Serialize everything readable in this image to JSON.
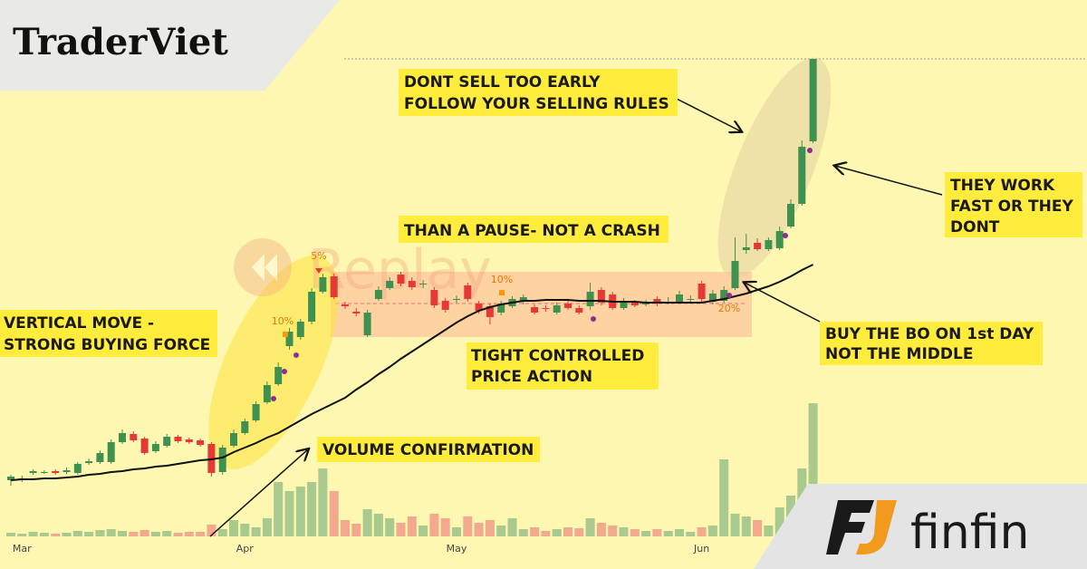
{
  "header": {
    "brand": "TraderViet"
  },
  "logo": {
    "name": "finfin"
  },
  "watermark": "Replay",
  "annotations": [
    [
      "DONT SELL TOO EARLY",
      "FOLLOW YOUR SELLING RULES"
    ],
    [
      "THAN A PAUSE- NOT A CRASH"
    ],
    [
      "VERTICAL MOVE -",
      "STRONG BUYING FORCE"
    ],
    [
      "TIGHT CONTROLLED",
      "PRICE ACTION"
    ],
    [
      "VOLUME CONFIRMATION"
    ],
    [
      "THEY WORK",
      "FAST OR THEY",
      "DONT"
    ],
    [
      "BUY THE BO ON 1st DAY",
      "NOT THE MIDDLE"
    ]
  ],
  "signal_labels": [
    "5%",
    "10%",
    "10%",
    "20%"
  ],
  "chart_data": {
    "type": "candlestick",
    "categories": [
      null,
      "Mar",
      null,
      null,
      null,
      null,
      null,
      null,
      null,
      null,
      null,
      null,
      null,
      null,
      null,
      null,
      null,
      null,
      null,
      null,
      null,
      "Apr",
      null,
      null,
      null,
      null,
      null,
      null,
      null,
      null,
      null,
      null,
      null,
      null,
      null,
      null,
      null,
      null,
      null,
      null,
      "May",
      null,
      null,
      null,
      null,
      null,
      null,
      null,
      null,
      null,
      null,
      null,
      null,
      null,
      null,
      null,
      null,
      null,
      null,
      null,
      null,
      null,
      "Jun",
      null,
      null,
      null,
      null,
      null,
      null,
      null,
      null,
      null,
      null
    ],
    "open": [
      7.0,
      7.2,
      7.8,
      7.9,
      8.0,
      7.9,
      7.8,
      8.9,
      9.0,
      9.0,
      11.2,
      12.1,
      11.6,
      10.2,
      10.8,
      11.8,
      11.5,
      11.4,
      11.0,
      7.9,
      10.8,
      12.2,
      13.6,
      15.6,
      17.6,
      21.8,
      22.8,
      24.5,
      27.8,
      29.5,
      26.4,
      25.6,
      23.0,
      27.0,
      28.2,
      29.7,
      29.0,
      28.7,
      28.0,
      26.8,
      27.0,
      28.5,
      26.5,
      26.2,
      25.5,
      26.2,
      26.7,
      26.1,
      26.0,
      25.5,
      26.5,
      26.0,
      26.2,
      28.0,
      27.5,
      26.0,
      26.6,
      26.5,
      27.0,
      26.7,
      26.7,
      27.0,
      28.7,
      26.7,
      26.8,
      28.2,
      32.4,
      33.2,
      32.5,
      32.6,
      35.0,
      37.5,
      44.4
    ],
    "close": [
      7.4,
      7.2,
      8.0,
      7.9,
      7.8,
      8.1,
      8.8,
      9.1,
      10.0,
      11.2,
      12.2,
      11.4,
      10.0,
      11.0,
      11.8,
      11.3,
      11.2,
      10.9,
      7.8,
      10.6,
      12.2,
      13.5,
      15.4,
      17.5,
      19.5,
      23.4,
      24.5,
      27.8,
      29.4,
      27.2,
      26.2,
      25.4,
      25.5,
      28.0,
      29.0,
      28.7,
      28.3,
      28.7,
      26.3,
      25.8,
      27.0,
      27.0,
      25.7,
      25.0,
      26.5,
      27.0,
      27.2,
      25.5,
      25.9,
      26.3,
      26.0,
      25.5,
      27.8,
      26.6,
      26.0,
      26.8,
      26.3,
      26.5,
      26.5,
      26.7,
      27.5,
      27.0,
      27.0,
      27.6,
      28.0,
      31.2,
      32.7,
      32.5,
      33.5,
      34.5,
      37.5,
      43.8,
      53.5
    ],
    "high": [
      7.6,
      7.5,
      8.2,
      8.1,
      8.2,
      8.4,
      9.0,
      9.4,
      10.3,
      11.5,
      12.6,
      12.4,
      11.8,
      11.3,
      12.1,
      12.0,
      11.7,
      11.6,
      11.2,
      10.9,
      12.6,
      13.8,
      15.7,
      17.9,
      20.0,
      23.8,
      24.8,
      28.2,
      29.8,
      29.8,
      26.7,
      26.0,
      25.8,
      28.4,
      29.4,
      30.0,
      29.4,
      29.1,
      28.3,
      27.1,
      27.4,
      28.8,
      26.8,
      26.5,
      26.8,
      27.3,
      27.5,
      26.4,
      26.3,
      26.6,
      26.8,
      26.3,
      28.8,
      28.3,
      27.8,
      27.1,
      26.9,
      26.9,
      27.3,
      27.2,
      27.9,
      27.4,
      29.0,
      28.0,
      28.4,
      33.8,
      34.2,
      33.7,
      33.8,
      35.0,
      38.0,
      44.5,
      53.5
    ],
    "low": [
      6.4,
      6.8,
      7.6,
      7.7,
      7.6,
      7.7,
      7.6,
      8.7,
      8.8,
      8.8,
      11.0,
      11.2,
      9.8,
      10.0,
      10.6,
      11.1,
      11.0,
      10.7,
      7.4,
      7.6,
      10.6,
      12.0,
      13.4,
      15.4,
      17.4,
      21.4,
      22.5,
      24.2,
      27.6,
      27.0,
      25.9,
      25.1,
      22.8,
      26.8,
      28.0,
      28.4,
      28.0,
      28.2,
      26.0,
      25.5,
      26.6,
      26.7,
      25.4,
      24.2,
      25.2,
      26.0,
      26.4,
      25.3,
      25.6,
      25.3,
      25.8,
      25.3,
      25.8,
      26.3,
      25.8,
      25.8,
      26.1,
      26.2,
      26.2,
      26.4,
      26.5,
      26.7,
      26.7,
      26.4,
      26.6,
      28.0,
      32.0,
      32.3,
      32.3,
      32.4,
      34.8,
      37.3,
      44.2
    ],
    "volume": [
      4,
      3,
      5,
      4,
      3,
      4,
      6,
      5,
      7,
      8,
      6,
      5,
      7,
      5,
      6,
      4,
      5,
      5,
      13,
      8,
      18,
      14,
      10,
      20,
      60,
      50,
      55,
      60,
      75,
      50,
      18,
      14,
      30,
      25,
      20,
      15,
      22,
      12,
      25,
      20,
      10,
      22,
      15,
      18,
      12,
      20,
      8,
      10,
      6,
      8,
      10,
      9,
      20,
      15,
      12,
      10,
      8,
      6,
      8,
      6,
      8,
      5,
      10,
      12,
      85,
      25,
      22,
      18,
      12,
      32,
      45,
      75,
      147
    ],
    "ma": [
      7.0,
      7.1,
      7.1,
      7.2,
      7.2,
      7.3,
      7.4,
      7.6,
      7.7,
      7.9,
      8.0,
      8.2,
      8.3,
      8.5,
      8.6,
      8.8,
      9.0,
      9.2,
      9.3,
      9.5,
      10.1,
      10.6,
      11.1,
      11.7,
      12.2,
      12.9,
      13.6,
      14.3,
      14.9,
      15.5,
      16.1,
      17.0,
      17.8,
      18.7,
      19.5,
      20.4,
      21.2,
      22.0,
      22.8,
      23.6,
      24.4,
      25.1,
      25.7,
      26.1,
      26.4,
      26.6,
      26.8,
      26.8,
      26.9,
      26.9,
      26.9,
      26.8,
      26.8,
      26.8,
      26.7,
      26.7,
      26.7,
      26.6,
      26.6,
      26.6,
      26.6,
      26.6,
      26.6,
      26.8,
      27.0,
      27.3,
      27.6,
      28.0,
      28.4,
      28.9,
      29.5,
      30.2,
      30.8
    ],
    "ylim": [
      0,
      60
    ],
    "vlim": [
      0,
      150
    ],
    "up_color": "#3f9150",
    "down_color": "#e53935",
    "up_volume_color": "#a9c98f",
    "down_volume_color": "#f2a98e",
    "ma_color": "#111111"
  }
}
